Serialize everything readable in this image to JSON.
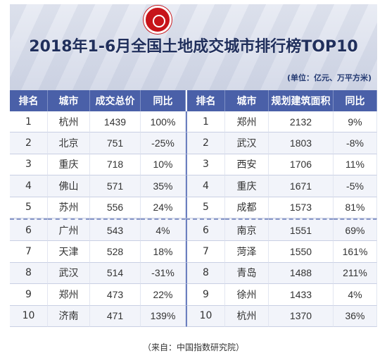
{
  "title": "2018年1-6月全国土地成交城市排行榜TOP10",
  "unit": "(单位：亿元、万平方米)",
  "headers": [
    "排名",
    "城市",
    "成交总价",
    "同比",
    "排名",
    "城市",
    "规划建筑面积",
    "同比"
  ],
  "rows": [
    {
      "rank_l": "1",
      "city_l": "杭州",
      "total": "1439",
      "yoy_l": "100%",
      "rank_r": "1",
      "city_r": "郑州",
      "area": "2132",
      "yoy_r": "9%"
    },
    {
      "rank_l": "2",
      "city_l": "北京",
      "total": "751",
      "yoy_l": "-25%",
      "rank_r": "2",
      "city_r": "武汉",
      "area": "1803",
      "yoy_r": "-8%"
    },
    {
      "rank_l": "3",
      "city_l": "重庆",
      "total": "718",
      "yoy_l": "10%",
      "rank_r": "3",
      "city_r": "西安",
      "area": "1706",
      "yoy_r": "11%"
    },
    {
      "rank_l": "4",
      "city_l": "佛山",
      "total": "571",
      "yoy_l": "35%",
      "rank_r": "4",
      "city_r": "重庆",
      "area": "1671",
      "yoy_r": "-5%"
    },
    {
      "rank_l": "5",
      "city_l": "苏州",
      "total": "556",
      "yoy_l": "24%",
      "rank_r": "5",
      "city_r": "成都",
      "area": "1573",
      "yoy_r": "81%"
    },
    {
      "rank_l": "6",
      "city_l": "广州",
      "total": "543",
      "yoy_l": "4%",
      "rank_r": "6",
      "city_r": "南京",
      "area": "1551",
      "yoy_r": "69%"
    },
    {
      "rank_l": "7",
      "city_l": "天津",
      "total": "528",
      "yoy_l": "18%",
      "rank_r": "7",
      "city_r": "菏泽",
      "area": "1550",
      "yoy_r": "161%"
    },
    {
      "rank_l": "8",
      "city_l": "武汉",
      "total": "514",
      "yoy_l": "-31%",
      "rank_r": "8",
      "city_r": "青岛",
      "area": "1488",
      "yoy_r": "211%"
    },
    {
      "rank_l": "9",
      "city_l": "郑州",
      "total": "473",
      "yoy_l": "22%",
      "rank_r": "9",
      "city_r": "徐州",
      "area": "1433",
      "yoy_r": "4%"
    },
    {
      "rank_l": "10",
      "city_l": "济南",
      "total": "471",
      "yoy_l": "139%",
      "rank_r": "10",
      "city_r": "杭州",
      "area": "1370",
      "yoy_r": "36%"
    }
  ],
  "source": "（来自：中国指数研究院）",
  "colors": {
    "header_bg": "#4a60a8",
    "title": "#202f5c",
    "logo": "#c7141a",
    "row_alt": "#f2f4fa"
  }
}
